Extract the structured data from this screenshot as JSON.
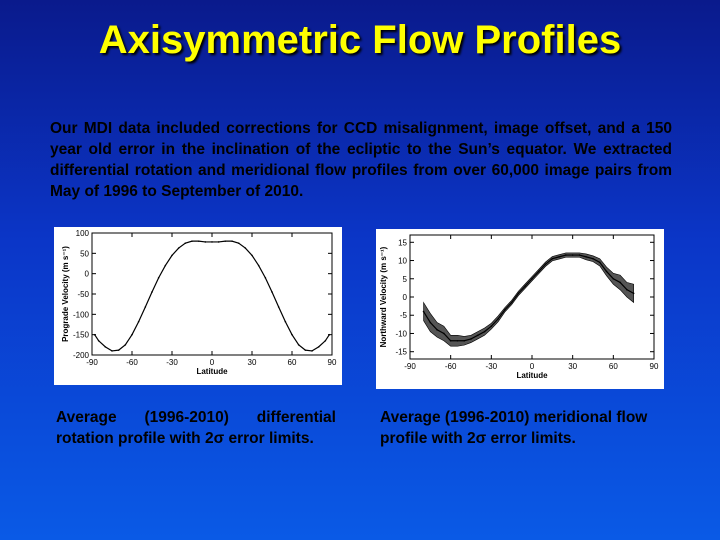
{
  "title": "Axisymmetric Flow Profiles",
  "intro": "Our MDI data included corrections for CCD misalignment, image offset, and a 150 year old error in the inclination of the ecliptic to the Sun’s equator. We extracted differential rotation and meridional flow profiles from over 60,000 image pairs from May of 1996 to September of 2010.",
  "captions": {
    "left": "Average (1996-2010) differential rotation profile with 2σ error limits.",
    "right": "Average (1996-2010) meridional flow profile with 2σ error limits."
  },
  "chart_data": [
    {
      "type": "line",
      "xlabel": "Latitude",
      "ylabel": "Prograde Velocity (m s⁻¹)",
      "xlim": [
        -90,
        90
      ],
      "ylim": [
        -200,
        100
      ],
      "xticks": [
        -90,
        -60,
        -30,
        0,
        30,
        60,
        90
      ],
      "yticks": [
        100,
        50,
        0,
        -50,
        -100,
        -150,
        -200
      ],
      "grid": false,
      "series": [
        {
          "x": [
            -88,
            -85,
            -80,
            -75,
            -70,
            -65,
            -60,
            -55,
            -50,
            -45,
            -40,
            -35,
            -30,
            -25,
            -20,
            -15,
            -10,
            -5,
            0,
            5,
            10,
            15,
            20,
            25,
            30,
            35,
            40,
            45,
            50,
            55,
            60,
            65,
            70,
            75,
            80,
            85,
            88
          ],
          "values": [
            -150,
            -165,
            -180,
            -190,
            -188,
            -175,
            -150,
            -118,
            -82,
            -45,
            -10,
            20,
            45,
            63,
            75,
            80,
            80,
            78,
            78,
            78,
            80,
            80,
            75,
            63,
            45,
            20,
            -10,
            -45,
            -82,
            -118,
            -150,
            -175,
            -188,
            -190,
            -180,
            -165,
            -150
          ]
        }
      ]
    },
    {
      "type": "line",
      "xlabel": "Latitude",
      "ylabel": "Northward Velocity (m s⁻¹)",
      "xlim": [
        -90,
        90
      ],
      "ylim": [
        -17,
        17
      ],
      "xticks": [
        -90,
        -60,
        -30,
        0,
        30,
        60,
        90
      ],
      "yticks": [
        15,
        10,
        5,
        0,
        -5,
        -10,
        -15
      ],
      "grid": false,
      "series": [
        {
          "x": [
            -80,
            -75,
            -70,
            -65,
            -60,
            -55,
            -50,
            -45,
            -40,
            -35,
            -30,
            -25,
            -20,
            -15,
            -10,
            -5,
            0,
            5,
            10,
            15,
            20,
            25,
            30,
            35,
            40,
            45,
            50,
            55,
            60,
            65,
            70,
            75
          ],
          "values": [
            -4,
            -7,
            -9,
            -10,
            -12,
            -12,
            -12,
            -11.5,
            -10.5,
            -9.5,
            -8,
            -6,
            -3.5,
            -1.5,
            1,
            3,
            5,
            7,
            9,
            10.5,
            11,
            11.5,
            11.5,
            11.5,
            11,
            10.5,
            9.5,
            7,
            5,
            4,
            2,
            1
          ],
          "error": [
            2.5,
            2.5,
            2,
            2,
            1.5,
            1.5,
            1.2,
            1,
            1,
            1,
            0.8,
            0.8,
            0.6,
            0.6,
            0.6,
            0.6,
            0.6,
            0.6,
            0.6,
            0.6,
            0.6,
            0.6,
            0.6,
            0.6,
            0.8,
            0.8,
            1,
            1.2,
            1.5,
            2,
            2,
            2.5
          ]
        }
      ]
    }
  ]
}
